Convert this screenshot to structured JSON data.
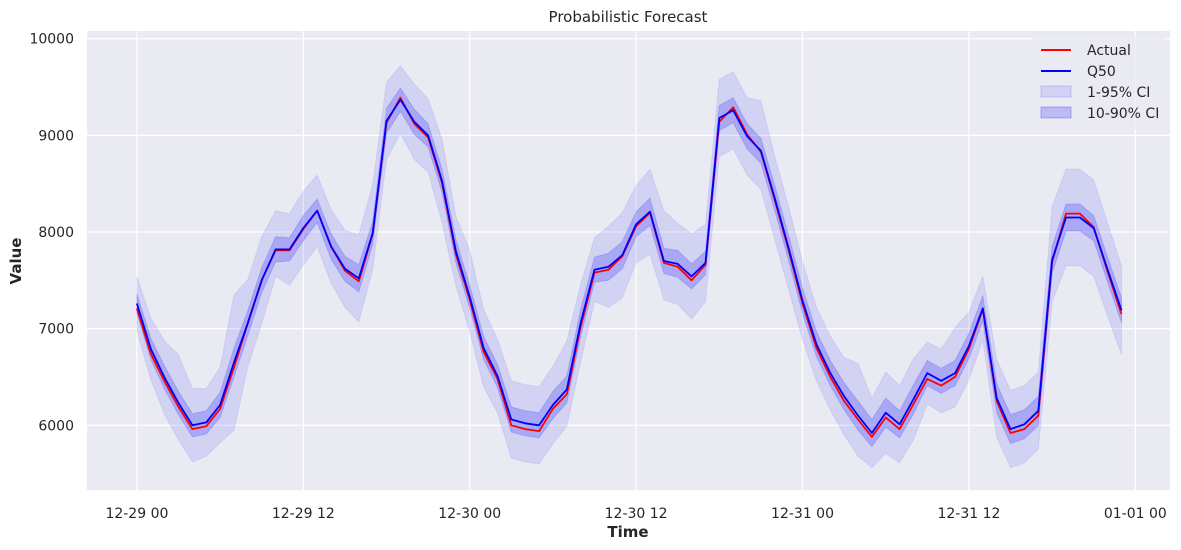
{
  "chart_data": {
    "type": "line",
    "title": "Probabilistic Forecast",
    "xlabel": "Time",
    "ylabel": "Value",
    "x_ticks": [
      "12-29 00",
      "12-29 12",
      "12-30 00",
      "12-30 12",
      "12-31 00",
      "12-31 12",
      "01-01 00"
    ],
    "y_ticks": [
      6000,
      7000,
      8000,
      9000,
      10000
    ],
    "ylim": [
      5330,
      10080
    ],
    "xlim_hours": [
      -3.6,
      74.5
    ],
    "grid": true,
    "legend_position": "top-right",
    "legend": [
      {
        "label": "Actual",
        "kind": "line",
        "color": "#ff0000"
      },
      {
        "label": "Q50",
        "kind": "line",
        "color": "#0000ff"
      },
      {
        "label": "1-95% CI",
        "kind": "band",
        "color": "#0000ff",
        "opacity": 0.1
      },
      {
        "label": "10-90% CI",
        "kind": "band",
        "color": "#0000ff",
        "opacity": 0.2
      }
    ],
    "series": [
      {
        "name": "Actual",
        "color": "#ff0000",
        "values": [
          7210,
          6740,
          6450,
          6190,
          5960,
          5990,
          6170,
          6600,
          7060,
          7500,
          7810,
          7810,
          8030,
          8220,
          7850,
          7600,
          7490,
          7980,
          9130,
          9390,
          9120,
          8980,
          8510,
          7770,
          7300,
          6760,
          6480,
          6000,
          5960,
          5940,
          6170,
          6320,
          7020,
          7580,
          7610,
          7750,
          8060,
          8200,
          7680,
          7640,
          7500,
          7660,
          9140,
          9290,
          9010,
          8830,
          8330,
          7810,
          7260,
          6800,
          6500,
          6250,
          6060,
          5880,
          6080,
          5960,
          6220,
          6480,
          6410,
          6500,
          6790,
          7200,
          6250,
          5920,
          5960,
          6100,
          7690,
          8190,
          8190,
          8050,
          7590,
          7150
        ]
      },
      {
        "name": "Q50",
        "color": "#0000ff",
        "values": [
          7260,
          6790,
          6490,
          6230,
          6000,
          6030,
          6210,
          6650,
          7060,
          7500,
          7820,
          7820,
          8040,
          8220,
          7850,
          7620,
          7520,
          7990,
          9150,
          9370,
          9140,
          9000,
          8530,
          7800,
          7330,
          6800,
          6510,
          6060,
          6020,
          6000,
          6210,
          6370,
          7060,
          7610,
          7640,
          7760,
          8080,
          8210,
          7700,
          7670,
          7540,
          7680,
          9180,
          9260,
          8990,
          8840,
          8350,
          7830,
          7290,
          6840,
          6540,
          6300,
          6100,
          5920,
          6130,
          6010,
          6270,
          6540,
          6460,
          6540,
          6820,
          7210,
          6280,
          5960,
          6010,
          6150,
          7710,
          8150,
          8150,
          8040,
          7610,
          7190
        ]
      }
    ]
  }
}
